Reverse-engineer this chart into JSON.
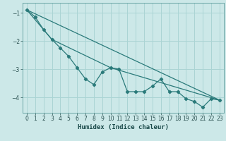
{
  "title": "",
  "xlabel": "Humidex (Indice chaleur)",
  "xlim": [
    -0.5,
    23.5
  ],
  "ylim": [
    -4.55,
    -0.65
  ],
  "background_color": "#cce8e8",
  "grid_color": "#aad4d4",
  "line_color": "#2a7a7a",
  "series": {
    "line1": [
      [
        0,
        -0.9
      ],
      [
        1,
        -1.15
      ],
      [
        2,
        -1.6
      ],
      [
        3,
        -1.95
      ],
      [
        4,
        -2.25
      ],
      [
        5,
        -2.55
      ],
      [
        6,
        -2.95
      ],
      [
        7,
        -3.35
      ],
      [
        8,
        -3.55
      ],
      [
        9,
        -3.1
      ],
      [
        10,
        -2.95
      ],
      [
        11,
        -3.0
      ],
      [
        12,
        -3.8
      ],
      [
        13,
        -3.8
      ],
      [
        14,
        -3.8
      ],
      [
        15,
        -3.6
      ],
      [
        16,
        -3.35
      ],
      [
        17,
        -3.8
      ],
      [
        18,
        -3.8
      ],
      [
        19,
        -4.05
      ],
      [
        20,
        -4.15
      ],
      [
        21,
        -4.35
      ],
      [
        22,
        -4.05
      ],
      [
        23,
        -4.1
      ]
    ],
    "line2": [
      [
        0,
        -0.9
      ],
      [
        3,
        -1.95
      ],
      [
        10,
        -2.95
      ],
      [
        23,
        -4.1
      ]
    ],
    "line3": [
      [
        0,
        -0.9
      ],
      [
        23,
        -4.1
      ]
    ]
  },
  "yticks": [
    -1,
    -2,
    -3,
    -4
  ],
  "xticks": [
    0,
    1,
    2,
    3,
    4,
    5,
    6,
    7,
    8,
    9,
    10,
    11,
    12,
    13,
    14,
    15,
    16,
    17,
    18,
    19,
    20,
    21,
    22,
    23
  ]
}
